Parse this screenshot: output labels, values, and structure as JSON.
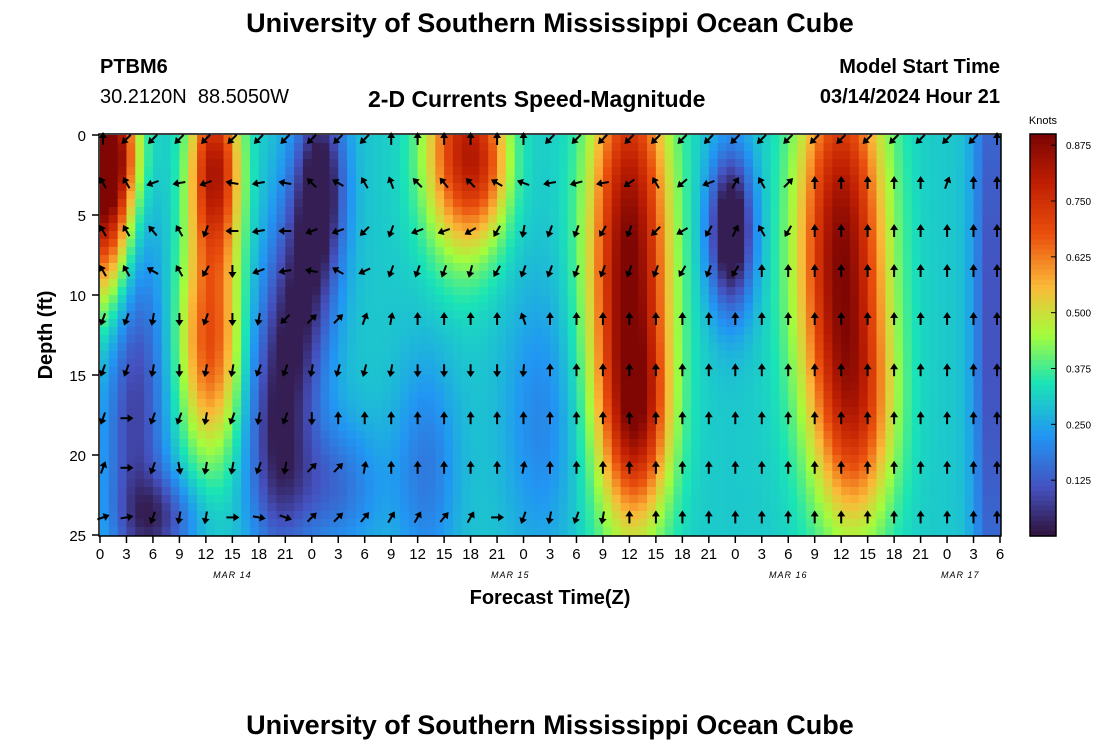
{
  "header": {
    "title": "University of Southern Mississippi Ocean Cube",
    "station_id": "PTBM6",
    "station_coords": "30.2120N  88.5050W",
    "plot_title": "2-D Currents Speed-Magnitude",
    "model_start_label": "Model Start Time",
    "model_start_value": "03/14/2024 Hour 21"
  },
  "footer": {
    "title": "University of Southern Mississippi Ocean Cube"
  },
  "colors": {
    "background": "#ffffff",
    "text": "#000000",
    "arrow": "#000000"
  },
  "chart_data": {
    "type": "heatmap",
    "title": "2-D Currents Speed-Magnitude",
    "xlabel": "Forecast Time(Z)",
    "ylabel": "Depth (ft)",
    "x_range_hours": [
      0,
      102
    ],
    "y_range_ft": [
      0,
      25
    ],
    "y_inverted": true,
    "y_ticks": [
      0,
      5,
      10,
      15,
      20,
      25
    ],
    "x_tick_hours": [
      0,
      3,
      6,
      9,
      12,
      15,
      18,
      21,
      24,
      27,
      30,
      33,
      36,
      39,
      42,
      45,
      48,
      51,
      54,
      57,
      60,
      63,
      66,
      69,
      72,
      75,
      78,
      81,
      84,
      87,
      90,
      93,
      96,
      99,
      102
    ],
    "x_tick_labels": [
      "0",
      "3",
      "6",
      "9",
      "12",
      "15",
      "18",
      "21",
      "0",
      "3",
      "6",
      "9",
      "12",
      "15",
      "18",
      "21",
      "0",
      "3",
      "6",
      "9",
      "12",
      "15",
      "18",
      "21",
      "0",
      "3",
      "6",
      "9",
      "12",
      "15",
      "18",
      "21",
      "0",
      "3",
      "6"
    ],
    "date_labels": [
      {
        "hour": 15,
        "text": "MAR 14"
      },
      {
        "hour": 46.5,
        "text": "MAR 15"
      },
      {
        "hour": 78,
        "text": "MAR 16"
      },
      {
        "hour": 97.5,
        "text": "MAR 17"
      }
    ],
    "colorbar": {
      "title": "Knots",
      "range": [
        0,
        0.9
      ],
      "ticks": [
        0.125,
        0.25,
        0.375,
        0.5,
        0.625,
        0.75,
        0.875
      ],
      "tick_labels": [
        "0.125",
        "0.250",
        "0.375",
        "0.500",
        "0.625",
        "0.750",
        "0.875"
      ]
    },
    "speed_model": {
      "cell_hours": 1,
      "cell_depth_ft": 0.5,
      "base": 0.3,
      "blobs": [
        {
          "t": 0.5,
          "d": 3,
          "st": 2.2,
          "sd": 5,
          "a": 0.62
        },
        {
          "t": 2,
          "d": 1,
          "st": 2,
          "sd": 2.5,
          "a": 0.2
        },
        {
          "t": 13,
          "d": 2,
          "st": 2,
          "sd": 4,
          "a": 0.5
        },
        {
          "t": 12.5,
          "d": 13,
          "st": 2.5,
          "sd": 5,
          "a": 0.38
        },
        {
          "t": 4,
          "d": 17,
          "st": 2.5,
          "sd": 8,
          "a": -0.22
        },
        {
          "t": 7,
          "d": 24,
          "st": 3,
          "sd": 2,
          "a": -0.18
        },
        {
          "t": 20,
          "d": 18,
          "st": 2.5,
          "sd": 6,
          "a": -0.25
        },
        {
          "t": 23,
          "d": 10,
          "st": 2.5,
          "sd": 5,
          "a": -0.22
        },
        {
          "t": 25,
          "d": 3,
          "st": 2,
          "sd": 4,
          "a": -0.3
        },
        {
          "t": 26,
          "d": 22,
          "st": 4,
          "sd": 3,
          "a": -0.15
        },
        {
          "t": 41,
          "d": 1,
          "st": 3,
          "sd": 4.5,
          "a": 0.45
        },
        {
          "t": 44,
          "d": 2,
          "st": 2,
          "sd": 3,
          "a": 0.15
        },
        {
          "t": 37,
          "d": 21,
          "st": 2.5,
          "sd": 5,
          "a": -0.12
        },
        {
          "t": 50,
          "d": 18,
          "st": 3,
          "sd": 6,
          "a": -0.1
        },
        {
          "t": 60,
          "d": 8,
          "st": 3.2,
          "sd": 10,
          "a": 0.6
        },
        {
          "t": 61,
          "d": 18,
          "st": 2.5,
          "sd": 4,
          "a": 0.25
        },
        {
          "t": 71.5,
          "d": 6,
          "st": 1.8,
          "sd": 3.5,
          "a": -0.38
        },
        {
          "t": 84,
          "d": 7,
          "st": 3.5,
          "sd": 9,
          "a": 0.57
        },
        {
          "t": 86,
          "d": 18,
          "st": 3,
          "sd": 5,
          "a": 0.25
        },
        {
          "t": 101,
          "d": 12,
          "st": 1.5,
          "sd": 20,
          "a": -0.2
        }
      ]
    },
    "arrow_grid": {
      "time_hours": [
        0,
        3,
        6,
        9,
        12,
        15,
        18,
        21,
        24,
        27,
        30,
        33,
        36,
        39,
        42,
        45,
        48,
        51,
        54,
        57,
        60,
        63,
        66,
        69,
        72,
        75,
        78,
        81,
        84,
        87,
        90,
        93,
        96,
        99,
        102
      ],
      "depths_ft": [
        0,
        3,
        6,
        8.5,
        11.5,
        14.7,
        17.7,
        20.8,
        23.9
      ],
      "directions_deg": [
        [
          0,
          225,
          225,
          225,
          225,
          225,
          225,
          225,
          225,
          225,
          225,
          0,
          0,
          0,
          0,
          0,
          0,
          225,
          225,
          225,
          225,
          225,
          225,
          225,
          225,
          225,
          225,
          225,
          225,
          225,
          225,
          225,
          225,
          225,
          0
        ],
        [
          330,
          330,
          250,
          260,
          250,
          280,
          260,
          280,
          315,
          300,
          330,
          340,
          315,
          320,
          315,
          300,
          290,
          260,
          255,
          260,
          235,
          330,
          230,
          250,
          30,
          330,
          45,
          0,
          0,
          0,
          0,
          0,
          20,
          0,
          0
        ],
        [
          330,
          330,
          320,
          330,
          200,
          270,
          260,
          270,
          250,
          250,
          225,
          200,
          250,
          250,
          240,
          210,
          190,
          200,
          200,
          210,
          200,
          225,
          240,
          210,
          25,
          330,
          210,
          0,
          0,
          0,
          0,
          0,
          0,
          0,
          0
        ],
        [
          330,
          330,
          300,
          330,
          210,
          180,
          250,
          260,
          280,
          300,
          245,
          200,
          200,
          200,
          195,
          210,
          200,
          200,
          200,
          200,
          200,
          200,
          210,
          200,
          210,
          0,
          0,
          0,
          0,
          0,
          0,
          0,
          0,
          0,
          0
        ],
        [
          200,
          200,
          190,
          180,
          200,
          180,
          190,
          225,
          45,
          45,
          20,
          10,
          0,
          0,
          0,
          0,
          340,
          0,
          0,
          0,
          0,
          0,
          0,
          0,
          0,
          0,
          0,
          0,
          0,
          0,
          0,
          0,
          0,
          0,
          0
        ],
        [
          200,
          200,
          190,
          180,
          190,
          190,
          200,
          200,
          190,
          195,
          195,
          190,
          180,
          180,
          180,
          180,
          185,
          0,
          0,
          0,
          0,
          0,
          0,
          0,
          0,
          0,
          0,
          0,
          0,
          0,
          0,
          0,
          0,
          0,
          0
        ],
        [
          200,
          90,
          200,
          200,
          190,
          200,
          190,
          200,
          180,
          0,
          0,
          0,
          0,
          0,
          0,
          0,
          0,
          0,
          0,
          0,
          0,
          0,
          0,
          0,
          0,
          0,
          0,
          0,
          0,
          0,
          0,
          0,
          0,
          0,
          0
        ],
        [
          20,
          90,
          200,
          170,
          190,
          190,
          200,
          190,
          45,
          45,
          10,
          0,
          0,
          0,
          0,
          0,
          10,
          0,
          0,
          0,
          0,
          0,
          0,
          0,
          0,
          0,
          0,
          0,
          0,
          0,
          0,
          0,
          0,
          0,
          0
        ],
        [
          70,
          80,
          200,
          190,
          190,
          90,
          100,
          110,
          45,
          45,
          40,
          30,
          30,
          40,
          30,
          90,
          200,
          190,
          200,
          190,
          0,
          0,
          0,
          0,
          0,
          0,
          0,
          0,
          0,
          0,
          0,
          0,
          0,
          0,
          0
        ]
      ]
    }
  }
}
